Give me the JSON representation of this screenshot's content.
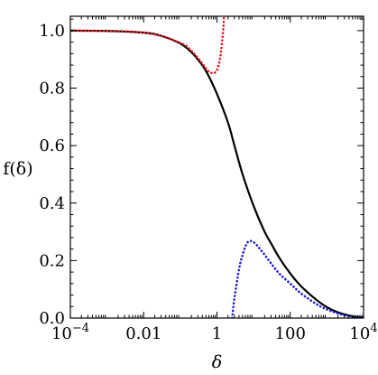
{
  "chart_data": {
    "type": "line",
    "xscale": "log",
    "xlim": [
      0.0001,
      10000
    ],
    "ylim": [
      0.0,
      1.05
    ],
    "grid": false,
    "legend": "none",
    "xlabel": "δ",
    "ylabel": "f(δ)",
    "x_ticks": [
      {
        "value": 0.0001,
        "base": "10",
        "exp": "−4"
      },
      {
        "value": 0.01,
        "text": "0.01"
      },
      {
        "value": 1,
        "text": "1"
      },
      {
        "value": 100,
        "text": "100"
      },
      {
        "value": 10000,
        "base": "10",
        "exp": "4"
      }
    ],
    "y_ticks": [
      {
        "value": 0.0,
        "text": "0.0"
      },
      {
        "value": 0.2,
        "text": "0.2"
      },
      {
        "value": 0.4,
        "text": "0.4"
      },
      {
        "value": 0.6,
        "text": "0.6"
      },
      {
        "value": 0.8,
        "text": "0.8"
      },
      {
        "value": 1.0,
        "text": "1.0"
      }
    ],
    "series": [
      {
        "style": "solid",
        "color": "#000000",
        "points": [
          [
            0.0001,
            1.0
          ],
          [
            0.001,
            0.999
          ],
          [
            0.01,
            0.993
          ],
          [
            0.03,
            0.982
          ],
          [
            0.1,
            0.955
          ],
          [
            0.2,
            0.925
          ],
          [
            0.3,
            0.9
          ],
          [
            0.5,
            0.86
          ],
          [
            1,
            0.78
          ],
          [
            2,
            0.68
          ],
          [
            3,
            0.6
          ],
          [
            5,
            0.5
          ],
          [
            10,
            0.39
          ],
          [
            20,
            0.3
          ],
          [
            30,
            0.26
          ],
          [
            50,
            0.21
          ],
          [
            100,
            0.155
          ],
          [
            200,
            0.11
          ],
          [
            500,
            0.065
          ],
          [
            1000,
            0.038
          ],
          [
            2000,
            0.02
          ],
          [
            5000,
            0.006
          ],
          [
            10000,
            0.002
          ]
        ]
      },
      {
        "style": "dotted",
        "color": "#e8141c",
        "points": [
          [
            0.0001,
            1.0
          ],
          [
            0.01,
            0.993
          ],
          [
            0.1,
            0.957
          ],
          [
            0.2,
            0.93
          ],
          [
            0.3,
            0.905
          ],
          [
            0.4,
            0.885
          ],
          [
            0.5,
            0.868
          ],
          [
            0.6,
            0.858
          ],
          [
            0.7,
            0.853
          ],
          [
            0.8,
            0.852
          ],
          [
            0.9,
            0.855
          ],
          [
            1.0,
            0.863
          ],
          [
            1.1,
            0.878
          ],
          [
            1.2,
            0.9
          ],
          [
            1.3,
            0.93
          ],
          [
            1.4,
            0.97
          ],
          [
            1.5,
            1.01
          ],
          [
            1.55,
            1.05
          ]
        ]
      },
      {
        "style": "dotted",
        "color": "#1a1ad6",
        "points": [
          [
            2.6,
            0.0
          ],
          [
            3.0,
            0.07
          ],
          [
            4.0,
            0.17
          ],
          [
            5.0,
            0.22
          ],
          [
            6.0,
            0.25
          ],
          [
            7.0,
            0.265
          ],
          [
            8.0,
            0.268
          ],
          [
            9.0,
            0.267
          ],
          [
            10,
            0.264
          ],
          [
            12,
            0.255
          ],
          [
            15,
            0.24
          ],
          [
            20,
            0.22
          ],
          [
            30,
            0.19
          ],
          [
            50,
            0.155
          ],
          [
            100,
            0.12
          ],
          [
            200,
            0.085
          ],
          [
            500,
            0.05
          ],
          [
            1000,
            0.03
          ],
          [
            3000,
            0.01
          ],
          [
            10000,
            0.002
          ]
        ]
      }
    ]
  }
}
